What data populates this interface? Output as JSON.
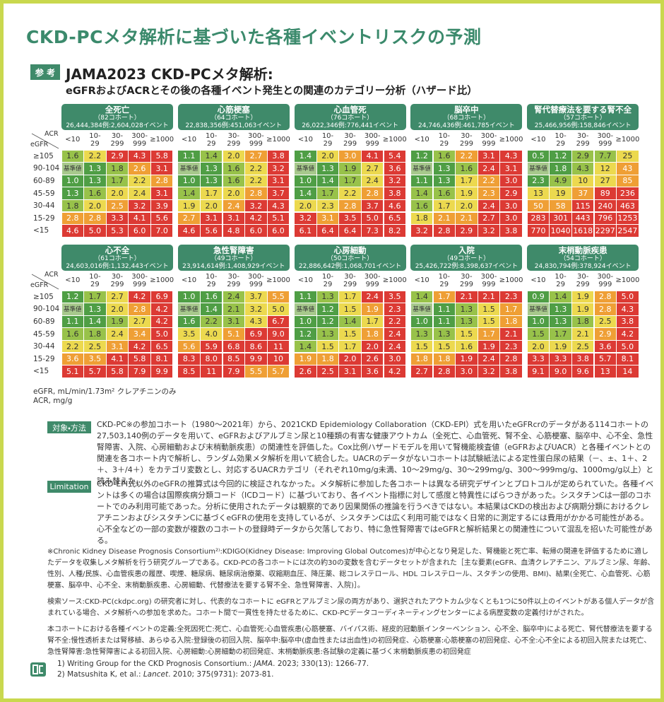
{
  "title": "CKD-PCメタ解析に基づいた各種イベントリスクの予測",
  "badge": "参 考",
  "heading": {
    "line1": "JAMA2023 CKD-PCメタ解析:",
    "line2": "eGFRおよびACRとその後の各種イベント発生との関連のカテゴリー分析（ハザード比）"
  },
  "grid": {
    "acr_label": "ACR",
    "egfr_label": "eGFR",
    "acr_categories": [
      "<10",
      "10-\n29",
      "30-\n299",
      "300-\n999",
      "≥1000"
    ],
    "egfr_categories": [
      "≥105",
      "90-104",
      "60-89",
      "45-59",
      "30-44",
      "15-29",
      "<15"
    ],
    "panels": [
      {
        "title": "全死亡",
        "cohorts": "（82コホート）",
        "counts": "26,444,384例:2,604,028イベント",
        "rows": [
          [
            "1.6",
            "2.2",
            "2.9",
            "4.3",
            "5.8"
          ],
          [
            "基準値",
            "1.3",
            "1.8",
            "2.6",
            "3.1"
          ],
          [
            "1.0",
            "1.3",
            "1.7",
            "2.2",
            "2.8"
          ],
          [
            "1.3",
            "1.6",
            "2.0",
            "2.4",
            "3.1"
          ],
          [
            "1.8",
            "2.0",
            "2.5",
            "3.2",
            "3.9"
          ],
          [
            "2.8",
            "2.8",
            "3.3",
            "4.1",
            "5.6"
          ],
          [
            "4.6",
            "5.0",
            "5.3",
            "6.0",
            "7.0"
          ]
        ]
      },
      {
        "title": "心筋梗塞",
        "cohorts": "（64コホート）",
        "counts": "22,838,356例:451,063イベント",
        "rows": [
          [
            "1.1",
            "1.4",
            "2.0",
            "2.7",
            "3.8"
          ],
          [
            "基準値",
            "1.3",
            "1.6",
            "2.2",
            "3.2"
          ],
          [
            "1.0",
            "1.3",
            "1.6",
            "2.2",
            "3.1"
          ],
          [
            "1.4",
            "1.7",
            "2.0",
            "2.8",
            "3.7"
          ],
          [
            "1.9",
            "2.0",
            "2.4",
            "3.2",
            "4.3"
          ],
          [
            "2.7",
            "3.1",
            "3.1",
            "4.2",
            "5.1"
          ],
          [
            "4.6",
            "5.6",
            "4.8",
            "6.0",
            "6.0"
          ]
        ]
      },
      {
        "title": "心血管死",
        "cohorts": "（76コホート）",
        "counts": "26,022,346例:776,441イベント",
        "rows": [
          [
            "1.4",
            "2.0",
            "3.0",
            "4.1",
            "5.4"
          ],
          [
            "基準値",
            "1.3",
            "1.9",
            "2.7",
            "3.6"
          ],
          [
            "1.0",
            "1.4",
            "1.7",
            "2.4",
            "3.2"
          ],
          [
            "1.4",
            "1.7",
            "2.2",
            "2.8",
            "3.8"
          ],
          [
            "2.0",
            "2.3",
            "2.8",
            "3.7",
            "4.6"
          ],
          [
            "3.2",
            "3.1",
            "3.5",
            "5.0",
            "6.5"
          ],
          [
            "6.1",
            "6.4",
            "6.4",
            "7.3",
            "8.2"
          ]
        ]
      },
      {
        "title": "脳卒中",
        "cohorts": "（68コホート）",
        "counts": "24,746,436例:461,785イベント",
        "rows": [
          [
            "1.2",
            "1.6",
            "2.2",
            "3.1",
            "4.3"
          ],
          [
            "基準値",
            "1.3",
            "1.6",
            "2.4",
            "3.1"
          ],
          [
            "1.1",
            "1.3",
            "1.7",
            "2.2",
            "3.0"
          ],
          [
            "1.4",
            "1.6",
            "1.9",
            "2.3",
            "2.9"
          ],
          [
            "1.6",
            "1.7",
            "2.0",
            "2.4",
            "3.0"
          ],
          [
            "1.8",
            "2.1",
            "2.1",
            "2.7",
            "3.0"
          ],
          [
            "3.2",
            "2.8",
            "2.9",
            "3.2",
            "3.8"
          ]
        ]
      },
      {
        "title": "腎代替療法を要する腎不全",
        "cohorts": "（57コホート）",
        "counts": "25,466,956例:158,846イベント",
        "rows": [
          [
            "0.5",
            "1.2",
            "2.9",
            "7.7",
            "25"
          ],
          [
            "基準値",
            "1.8",
            "4.3",
            "12",
            "43"
          ],
          [
            "2.3",
            "4.9",
            "10",
            "27",
            "85"
          ],
          [
            "13",
            "19",
            "37",
            "89",
            "236"
          ],
          [
            "50",
            "58",
            "115",
            "240",
            "463"
          ],
          [
            "283",
            "301",
            "443",
            "796",
            "1253"
          ],
          [
            "770",
            "1040",
            "1618",
            "2297",
            "2547"
          ]
        ]
      },
      {
        "title": "心不全",
        "cohorts": "（61コホート）",
        "counts": "24,603,016例:1,132,443イベント",
        "rows": [
          [
            "1.2",
            "1.7",
            "2.7",
            "4.2",
            "6.9"
          ],
          [
            "基準値",
            "1.3",
            "2.0",
            "2.8",
            "4.2"
          ],
          [
            "1.1",
            "1.4",
            "1.9",
            "2.7",
            "4.2"
          ],
          [
            "1.6",
            "1.8",
            "2.4",
            "3.4",
            "5.0"
          ],
          [
            "2.2",
            "2.5",
            "3.1",
            "4.2",
            "6.5"
          ],
          [
            "3.6",
            "3.5",
            "4.1",
            "5.8",
            "8.1"
          ],
          [
            "5.1",
            "5.7",
            "5.8",
            "7.9",
            "9.9"
          ]
        ]
      },
      {
        "title": "急性腎障害",
        "cohorts": "（49コホート）",
        "counts": "23,914,614例:1,408,929イベント",
        "rows": [
          [
            "1.0",
            "1.6",
            "2.4",
            "3.7",
            "5.5"
          ],
          [
            "基準値",
            "1.4",
            "2.1",
            "3.2",
            "5.0"
          ],
          [
            "1.6",
            "2.2",
            "3.1",
            "4.3",
            "6.7"
          ],
          [
            "3.5",
            "4.0",
            "5.1",
            "6.9",
            "9.0"
          ],
          [
            "5.6",
            "5.9",
            "6.8",
            "8.6",
            "11"
          ],
          [
            "8.3",
            "8.0",
            "8.5",
            "9.9",
            "10"
          ],
          [
            "8.5",
            "11",
            "7.9",
            "5.5",
            "5.7"
          ]
        ]
      },
      {
        "title": "心房細動",
        "cohorts": "（50コホート）",
        "counts": "22,886,642例:1,068,701イベント",
        "rows": [
          [
            "1.1",
            "1.3",
            "1.7",
            "2.4",
            "3.5"
          ],
          [
            "基準値",
            "1.2",
            "1.5",
            "1.9",
            "2.3"
          ],
          [
            "1.0",
            "1.2",
            "1.4",
            "1.7",
            "2.2"
          ],
          [
            "1.2",
            "1.3",
            "1.5",
            "1.8",
            "2.4"
          ],
          [
            "1.4",
            "1.5",
            "1.7",
            "2.0",
            "2.4"
          ],
          [
            "1.9",
            "1.8",
            "2.0",
            "2.6",
            "3.0"
          ],
          [
            "2.6",
            "2.5",
            "3.1",
            "3.6",
            "4.2"
          ]
        ]
      },
      {
        "title": "入院",
        "cohorts": "（49コホート）",
        "counts": "25,426,722例:8,398,637イベント",
        "rows": [
          [
            "1.4",
            "1.7",
            "2.1",
            "2.1",
            "2.3"
          ],
          [
            "基準値",
            "1.1",
            "1.3",
            "1.5",
            "1.7"
          ],
          [
            "1.0",
            "1.1",
            "1.3",
            "1.5",
            "1.8"
          ],
          [
            "1.3",
            "1.3",
            "1.5",
            "1.7",
            "2.1"
          ],
          [
            "1.5",
            "1.5",
            "1.6",
            "1.9",
            "2.3"
          ],
          [
            "1.8",
            "1.8",
            "1.9",
            "2.4",
            "2.8"
          ],
          [
            "2.7",
            "2.8",
            "3.0",
            "3.2",
            "3.8"
          ]
        ]
      },
      {
        "title": "末梢動脈疾患",
        "cohorts": "（54コホート）",
        "counts": "24,830,794例:378,924イベント",
        "rows": [
          [
            "0.9",
            "1.4",
            "1.9",
            "2.8",
            "5.0"
          ],
          [
            "基準値",
            "1.3",
            "1.9",
            "2.8",
            "4.3"
          ],
          [
            "1.0",
            "1.3",
            "1.8",
            "2.5",
            "3.8"
          ],
          [
            "1.5",
            "1.7",
            "2.1",
            "2.9",
            "4.2"
          ],
          [
            "2.0",
            "1.9",
            "2.5",
            "3.6",
            "5.0"
          ],
          [
            "3.3",
            "3.3",
            "3.8",
            "5.7",
            "8.1"
          ],
          [
            "9.1",
            "9.0",
            "9.6",
            "13",
            "14"
          ]
        ]
      }
    ]
  },
  "units": [
    "eGFR, mL/min/1.73m² クレアチニンのみ",
    "ACR, mg/g"
  ],
  "sections": [
    {
      "label": "対象・方法",
      "text": "CKD-PC※の参加コホート（1980～2021年）から、2021CKD Epidemiology Collaboration（CKD-EPI）式を用いたeGFRcrのデータがある114コホートの27,503,140例のデータを用いて、eGFRおよびアルブミン尿と10種類の有害な健康アウトカム（全死亡、心血管死、腎不全、心筋梗塞、脳卒中、心不全、急性腎障害、入院、心房細動および末梢動脈疾患）の関連性を評価した。Cox比例ハザードモデルを用いて腎機能検査値（eGFRおよびUACR）と各種イベントとの関連を各コホート内で解析し、ランダム効果メタ解析を用いて統合した。UACRのデータがないコホートは試験紙法による定性蛋白尿の結果（－、±、1＋、2＋、3＋/4＋）をカテゴリ変数とし、対応するUACRカテゴリ（それぞれ10mg/g未満、10～29mg/g、30～299mg/g、300～999mg/g、1000mg/g以上）と読み替えた。"
    },
    {
      "label": "Limitation",
      "text": "CKD-EPI式以外のeGFRの推算式は今回的に検証されなかった。メタ解析に参加した各コホートは異なる研究デザインとプロトコルが定められていた。各種イベントは多くの場合は国際疾病分類コード（ICDコード）に基づいており、各イベント指標に対して感度と特異性にばらつきがあった。シスタチンCは一部のコホートでのみ利用可能であった。分析に使用されたデータは観察的であり因果関係の推論を行うべきではない。本結果はCKDの検出および病期分類におけるクレアチニンおよびシスタチンCに基づくeGFRの使用を支持しているが、シスタチンCは広く利用可能ではなく日常的に測定するには費用がかかる可能性がある。心不全などの一部の変数が複数のコホートの登録時データから欠落しており、特に急性腎障害ではeGFRと解析結果との関連性について混乱を招いた可能性がある。"
    }
  ],
  "footnotes": [
    "※Chronic Kidney Disease Prognosis Consortium²⁾:KDIGO(Kidney Disease: Improving Global Outcomes)が中心となり発足した、腎機能と死亡率、転帰の関連を評価するために適したデータを収集しメタ解析を行う研究グループである。CKD-PCの各コホートには次の約30の変数を含むデータセットが含まれた［主な要素(eGFR、血清クレアチニン、アルブミン尿、年齢、性別、人種/民族、心血管疾患の履歴、喫煙、糖尿病、糖尿病治療薬、収縮期血圧、降圧薬、総コレステロール、HDL コレステロール、スタチンの使用、BMI)、結果(全死亡、心血管死、心筋梗塞、脳卒中、心不全、末梢動脈疾患、心房細動、代替療法を要する腎不全、急性腎障害、入院)］。",
    "検索ソース:CKD-PC(ckdpc.org) の研究者に対し、代表的なコホートに eGFRとアルブミン尿の両方があり、選択されたアウトカム少なくとも1つに50件以上のイベントがある個人データが含まれている場合、メタ解析への参加を求めた。コホート間で一貫性を持たせるために、CKD-PCデータコーディネーティングセンターによる病歴変数の定義付けがされた。",
    "本コホートにおける各種イベントの定義:全死因死亡:死亡、心血管死:心血管疾患(心筋梗塞、バイパス術、経皮的冠動脈インターベンション、心不全、脳卒中)による死亡、腎代替療法を要する腎不全:慢性透析または腎移植、あらゆる入院:登録後の初回入院、脳卒中:脳卒中(虚血性または出血性)の初回発症、心筋梗塞:心筋梗塞の初回発症、心不全:心不全による初回入院または死亡、急性腎障害:急性腎障害による初回入院、心房細動:心房細動の初回発症、末梢動脈疾患:各試験の定義に基づく末梢動脈疾患の初回発症"
  ],
  "references": [
    {
      "authors": "1) Writing Group for the CKD Prognosis Consortium.:",
      "journal": "JAMA",
      "citation": ". 2023; 330(13): 1266-77."
    },
    {
      "authors": "2) Matsushita K, et al.:",
      "journal": "Lancet",
      "citation": ". 2010; 375(9731): 2073-81."
    }
  ]
}
